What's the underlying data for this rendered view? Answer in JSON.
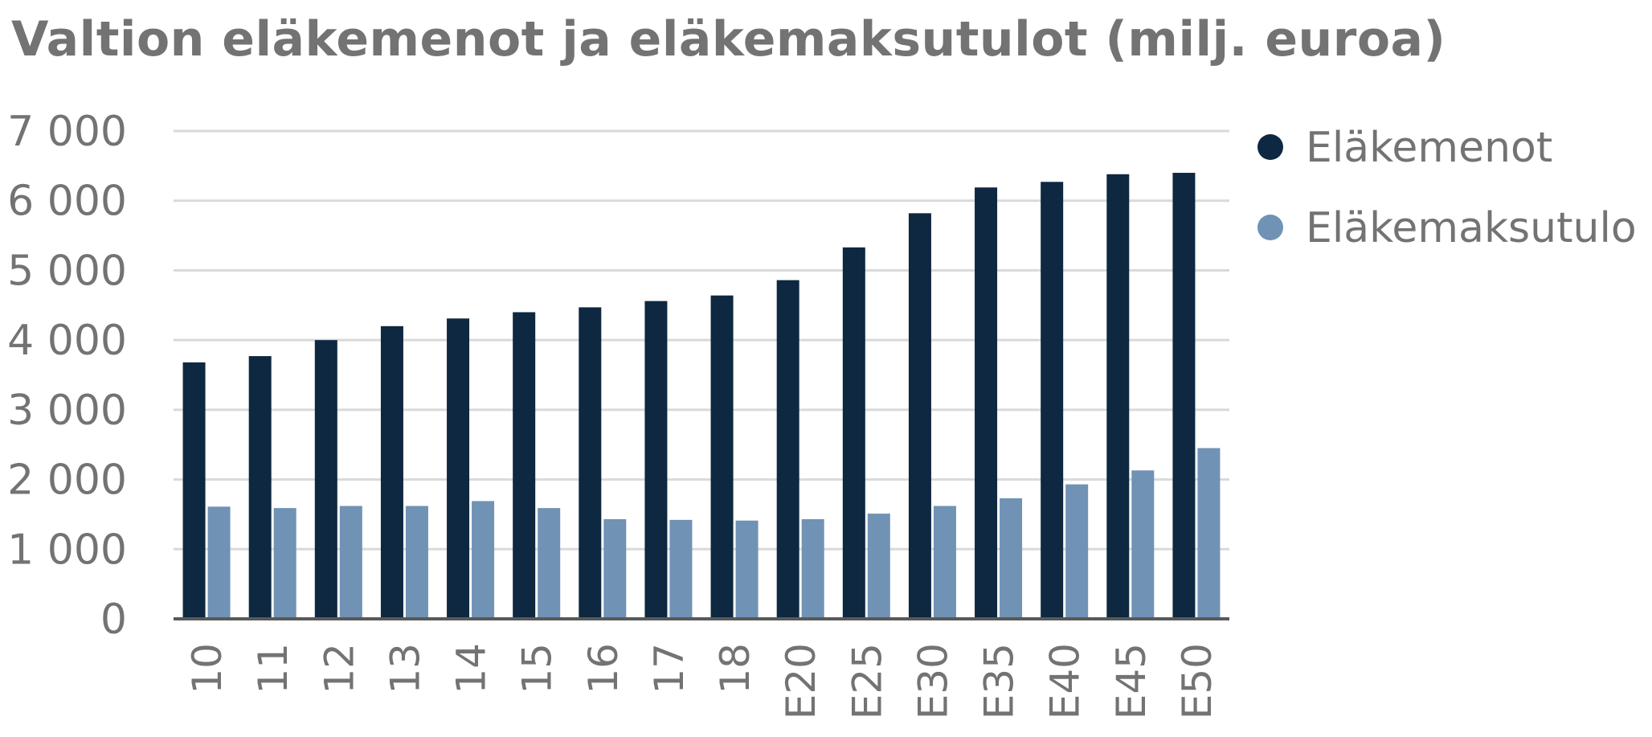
{
  "chart_data": {
    "type": "bar",
    "title": "Valtion eläkemenot ja eläkemaksutulot (milj. euroa)",
    "xlabel": "",
    "ylabel": "",
    "categories": [
      "10",
      "11",
      "12",
      "13",
      "14",
      "15",
      "16",
      "17",
      "18",
      "E20",
      "E25",
      "E30",
      "E35",
      "E40",
      "E45",
      "E50"
    ],
    "series": [
      {
        "name": "Eläkemenot",
        "color": "#0d2840",
        "values": [
          3680,
          3770,
          4000,
          4200,
          4310,
          4400,
          4470,
          4560,
          4640,
          4860,
          5330,
          5820,
          6190,
          6270,
          6380,
          6400
        ]
      },
      {
        "name": "Eläkemaksutulo",
        "color": "#7092b5",
        "values": [
          1610,
          1590,
          1620,
          1620,
          1690,
          1590,
          1430,
          1420,
          1410,
          1430,
          1510,
          1620,
          1730,
          1930,
          2130,
          2450
        ]
      }
    ],
    "ylim": [
      0,
      7000
    ],
    "yticks": [
      {
        "value": 0,
        "label": "0"
      },
      {
        "value": 1000,
        "label": "1 000"
      },
      {
        "value": 2000,
        "label": "2 000"
      },
      {
        "value": 3000,
        "label": "3 000"
      },
      {
        "value": 4000,
        "label": "4 000"
      },
      {
        "value": 5000,
        "label": "5 000"
      },
      {
        "value": 6000,
        "label": "6 000"
      },
      {
        "value": 7000,
        "label": "7 000"
      }
    ],
    "grid": true,
    "legend_position": "right",
    "colors": {
      "gridline": "#d9d9d9",
      "axis": "#595959",
      "text": "#737373"
    }
  }
}
